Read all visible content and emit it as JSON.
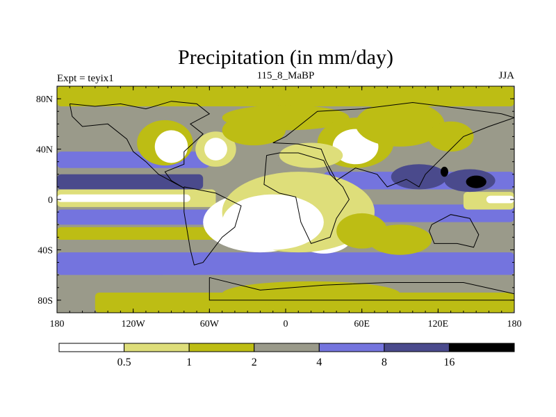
{
  "chart_data": {
    "type": "heatmap",
    "title": "Precipitation (in mm/day)",
    "left_label": "Expt = teyix1",
    "center_label": "115_8_MaBP",
    "right_label": "JJA",
    "x_ticks": [
      {
        "value": -180,
        "label": "180"
      },
      {
        "value": -120,
        "label": "120W"
      },
      {
        "value": -60,
        "label": "60W"
      },
      {
        "value": 0,
        "label": "0"
      },
      {
        "value": 60,
        "label": "60E"
      },
      {
        "value": 120,
        "label": "120E"
      },
      {
        "value": 180,
        "label": "180"
      }
    ],
    "y_ticks": [
      {
        "value": 80,
        "label": "80N"
      },
      {
        "value": 40,
        "label": "40N"
      },
      {
        "value": 0,
        "label": "0"
      },
      {
        "value": -40,
        "label": "40S"
      },
      {
        "value": -80,
        "label": "80S"
      }
    ],
    "xlim": [
      -180,
      180
    ],
    "ylim": [
      -90,
      90
    ],
    "colorbar": {
      "levels": [
        "0.5",
        "1",
        "2",
        "4",
        "8",
        "16"
      ],
      "colors": [
        "#ffffff",
        "#dede7a",
        "#bdbd14",
        "#9a9a8a",
        "#7474de",
        "#4a4a8c",
        "#000000"
      ]
    },
    "fields": {
      "base_color": "#9a9a8a",
      "bands": [
        {
          "lat": [
            74,
            90
          ],
          "lon": [
            -180,
            180
          ],
          "color": "#bdbd14"
        },
        {
          "lat": [
            25,
            38
          ],
          "lon": [
            -180,
            -60
          ],
          "color": "#7474de"
        },
        {
          "lat": [
            8,
            20
          ],
          "lon": [
            -180,
            -65
          ],
          "color": "#4a4a8c"
        },
        {
          "lat": [
            -6,
            8
          ],
          "lon": [
            -180,
            -55
          ],
          "color": "#dede7a"
        },
        {
          "lat": [
            -2,
            4
          ],
          "lon": [
            -180,
            -75
          ],
          "color": "#ffffff"
        },
        {
          "lat": [
            -20,
            -8
          ],
          "lon": [
            -180,
            -40
          ],
          "color": "#7474de"
        },
        {
          "lat": [
            -32,
            -22
          ],
          "lon": [
            -180,
            -45
          ],
          "color": "#bdbd14"
        },
        {
          "lat": [
            -60,
            -42
          ],
          "lon": [
            -180,
            180
          ],
          "color": "#7474de"
        },
        {
          "lat": [
            -68,
            -60
          ],
          "lon": [
            -100,
            180
          ],
          "color": "#9a9a8a"
        },
        {
          "lat": [
            -90,
            -74
          ],
          "lon": [
            -150,
            180
          ],
          "color": "#bdbd14"
        },
        {
          "lat": [
            8,
            22
          ],
          "lon": [
            30,
            180
          ],
          "color": "#7474de"
        },
        {
          "lat": [
            -18,
            -4
          ],
          "lon": [
            40,
            180
          ],
          "color": "#7474de"
        },
        {
          "lat": [
            -8,
            6
          ],
          "lon": [
            140,
            180
          ],
          "color": "#dede7a"
        },
        {
          "lat": [
            -3,
            3
          ],
          "lon": [
            158,
            180
          ],
          "color": "#ffffff"
        }
      ],
      "blobs": [
        {
          "lon": -95,
          "lat": 45,
          "rx": 22,
          "ry": 18,
          "color": "#bdbd14"
        },
        {
          "lon": -90,
          "lat": 42,
          "rx": 13,
          "ry": 13,
          "color": "#ffffff"
        },
        {
          "lon": -55,
          "lat": 40,
          "rx": 16,
          "ry": 14,
          "color": "#dede7a"
        },
        {
          "lon": -55,
          "lat": 40,
          "rx": 9,
          "ry": 9,
          "color": "#ffffff"
        },
        {
          "lon": -25,
          "lat": 55,
          "rx": 25,
          "ry": 12,
          "color": "#bdbd14"
        },
        {
          "lon": 0,
          "lat": 65,
          "rx": 50,
          "ry": 10,
          "color": "#bdbd14"
        },
        {
          "lon": 55,
          "lat": 45,
          "rx": 30,
          "ry": 20,
          "color": "#bdbd14"
        },
        {
          "lon": 55,
          "lat": 42,
          "rx": 18,
          "ry": 14,
          "color": "#ffffff"
        },
        {
          "lon": 20,
          "lat": 35,
          "rx": 25,
          "ry": 10,
          "color": "#dede7a"
        },
        {
          "lon": 90,
          "lat": 60,
          "rx": 35,
          "ry": 18,
          "color": "#bdbd14"
        },
        {
          "lon": 130,
          "lat": 50,
          "rx": 18,
          "ry": 12,
          "color": "#bdbd14"
        },
        {
          "lon": -20,
          "lat": -18,
          "rx": 45,
          "ry": 24,
          "color": "#ffffff"
        },
        {
          "lon": 30,
          "lat": -25,
          "rx": 25,
          "ry": 18,
          "color": "#ffffff"
        },
        {
          "lon": 10,
          "lat": -10,
          "rx": 60,
          "ry": 32,
          "color": "#dede7a"
        },
        {
          "lon": -10,
          "lat": -18,
          "rx": 40,
          "ry": 22,
          "color": "#ffffff"
        },
        {
          "lon": 60,
          "lat": -25,
          "rx": 20,
          "ry": 14,
          "color": "#bdbd14"
        },
        {
          "lon": 90,
          "lat": -32,
          "rx": 25,
          "ry": 12,
          "color": "#bdbd14"
        },
        {
          "lon": 105,
          "lat": 18,
          "rx": 22,
          "ry": 10,
          "color": "#4a4a8c"
        },
        {
          "lon": 145,
          "lat": 15,
          "rx": 20,
          "ry": 9,
          "color": "#4a4a8c"
        },
        {
          "lon": 150,
          "lat": 14,
          "rx": 8,
          "ry": 5,
          "color": "#000000"
        },
        {
          "lon": 125,
          "lat": 22,
          "rx": 3,
          "ry": 4,
          "color": "#000000"
        },
        {
          "lon": 20,
          "lat": -75,
          "rx": 70,
          "ry": 10,
          "color": "#bdbd14"
        }
      ]
    },
    "coast_paths": [
      [
        [
          -170,
          76
        ],
        [
          -150,
          74
        ],
        [
          -130,
          76
        ],
        [
          -110,
          72
        ],
        [
          -90,
          78
        ],
        [
          -70,
          76
        ],
        [
          -60,
          68
        ],
        [
          -75,
          60
        ],
        [
          -65,
          52
        ],
        [
          -80,
          38
        ],
        [
          -80,
          28
        ],
        [
          -95,
          22
        ],
        [
          -90,
          15
        ],
        [
          -80,
          9
        ],
        [
          -100,
          20
        ],
        [
          -110,
          30
        ],
        [
          -120,
          38
        ],
        [
          -125,
          48
        ],
        [
          -140,
          60
        ],
        [
          -160,
          58
        ],
        [
          -168,
          66
        ],
        [
          -170,
          76
        ]
      ],
      [
        [
          -80,
          10
        ],
        [
          -55,
          5
        ],
        [
          -35,
          -5
        ],
        [
          -40,
          -22
        ],
        [
          -50,
          -30
        ],
        [
          -65,
          -50
        ],
        [
          -72,
          -52
        ],
        [
          -75,
          -40
        ],
        [
          -80,
          -10
        ],
        [
          -80,
          10
        ]
      ],
      [
        [
          -15,
          35
        ],
        [
          -5,
          37
        ],
        [
          10,
          37
        ],
        [
          30,
          31
        ],
        [
          35,
          20
        ],
        [
          45,
          10
        ],
        [
          50,
          0
        ],
        [
          40,
          -15
        ],
        [
          35,
          -30
        ],
        [
          20,
          -35
        ],
        [
          12,
          -18
        ],
        [
          8,
          2
        ],
        [
          -5,
          5
        ],
        [
          -17,
          12
        ],
        [
          -15,
          35
        ]
      ],
      [
        [
          -10,
          45
        ],
        [
          0,
          50
        ],
        [
          10,
          58
        ],
        [
          25,
          70
        ],
        [
          60,
          72
        ],
        [
          100,
          77
        ],
        [
          140,
          72
        ],
        [
          170,
          68
        ],
        [
          180,
          65
        ],
        [
          160,
          58
        ],
        [
          140,
          50
        ],
        [
          130,
          40
        ],
        [
          120,
          30
        ],
        [
          110,
          20
        ],
        [
          105,
          10
        ],
        [
          95,
          16
        ],
        [
          80,
          10
        ],
        [
          72,
          20
        ],
        [
          55,
          25
        ],
        [
          40,
          15
        ],
        [
          32,
          30
        ],
        [
          28,
          40
        ],
        [
          10,
          44
        ],
        [
          -10,
          45
        ]
      ],
      [
        [
          115,
          -20
        ],
        [
          130,
          -12
        ],
        [
          145,
          -15
        ],
        [
          152,
          -28
        ],
        [
          148,
          -38
        ],
        [
          135,
          -35
        ],
        [
          117,
          -35
        ],
        [
          113,
          -25
        ],
        [
          115,
          -20
        ]
      ],
      [
        [
          -60,
          -62
        ],
        [
          -20,
          -72
        ],
        [
          30,
          -68
        ],
        [
          80,
          -66
        ],
        [
          140,
          -66
        ],
        [
          180,
          -75
        ],
        [
          180,
          -80
        ],
        [
          -60,
          -80
        ],
        [
          -60,
          -62
        ]
      ]
    ]
  }
}
